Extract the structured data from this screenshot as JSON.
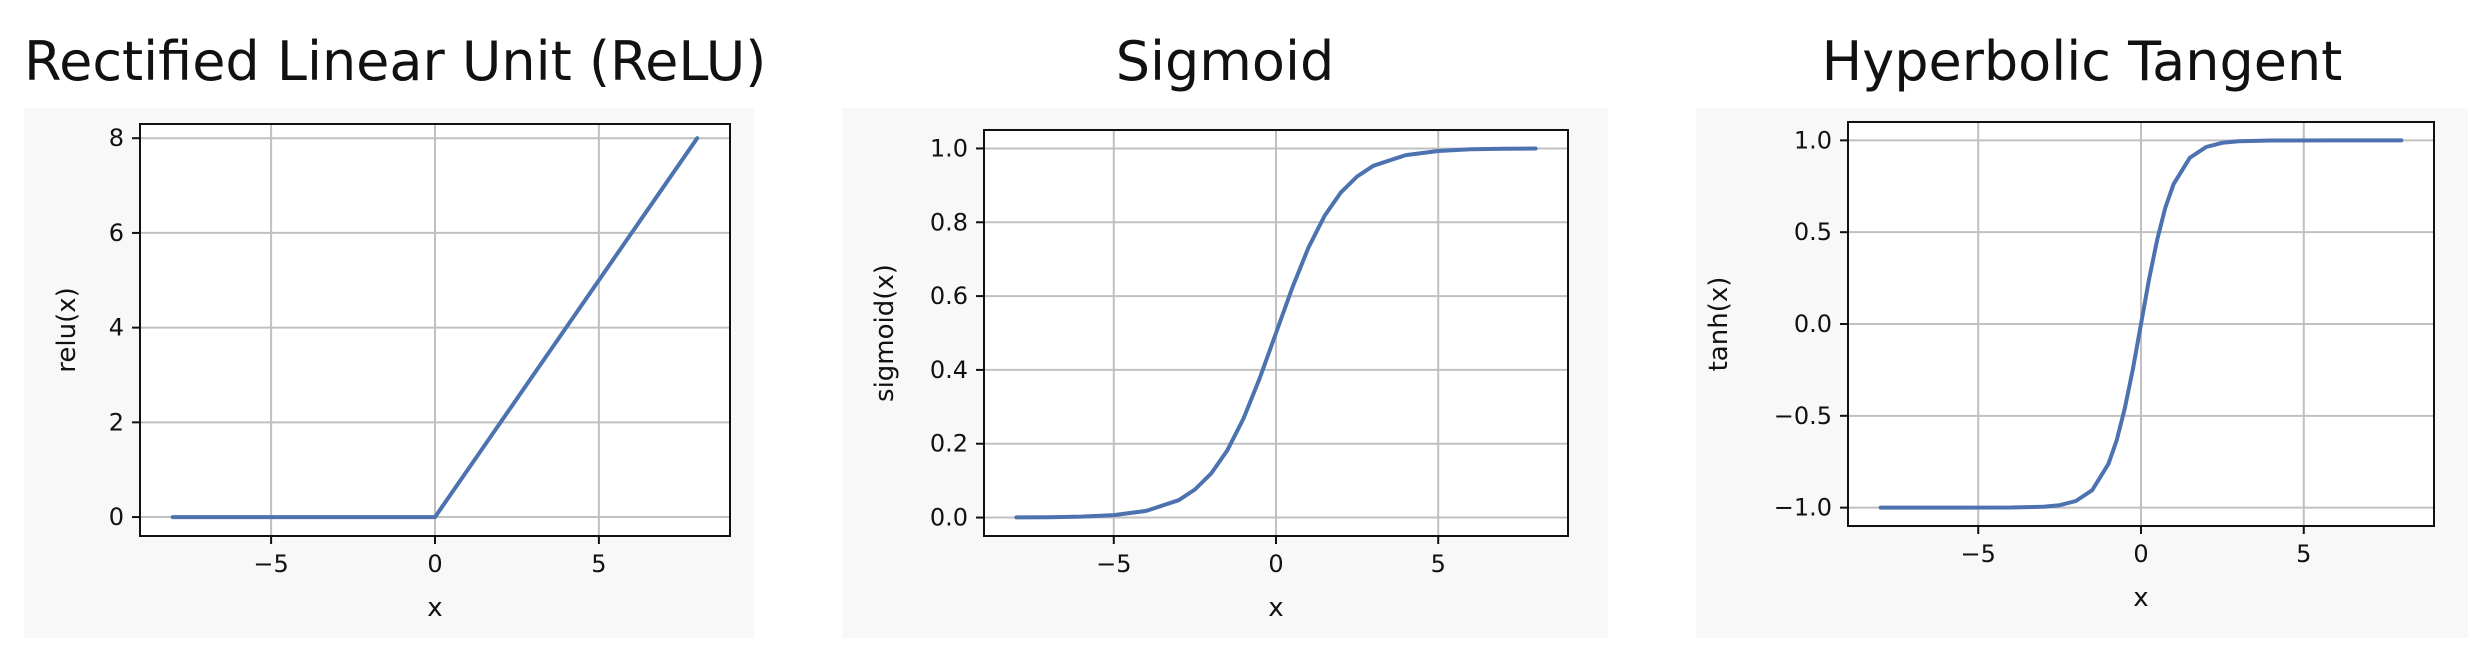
{
  "style": {
    "line_color": "#4c72b0",
    "grid_color": "#c0c0c0",
    "frame_color": "#111111",
    "panel_bg": "#f8f8f8"
  },
  "chart_data": [
    {
      "type": "line",
      "title": "Rectified Linear Unit (ReLU)",
      "xlabel": "x",
      "ylabel": "relu(x)",
      "xlim": [
        -9,
        9
      ],
      "ylim": [
        -0.4,
        8.3
      ],
      "x_ticks": [
        -5,
        0,
        5
      ],
      "x_tick_labels": [
        "−5",
        "0",
        "5"
      ],
      "y_ticks": [
        0,
        2,
        4,
        6,
        8
      ],
      "y_tick_labels": [
        "0",
        "2",
        "4",
        "6",
        "8"
      ],
      "grid": true,
      "series": [
        {
          "x": [
            -8,
            -4,
            0,
            4,
            8
          ],
          "y": [
            0,
            0,
            0,
            4,
            8
          ]
        }
      ]
    },
    {
      "type": "line",
      "title": "Sigmoid",
      "xlabel": "x",
      "ylabel": "sigmoid(x)",
      "xlim": [
        -9,
        9
      ],
      "ylim": [
        -0.05,
        1.05
      ],
      "x_ticks": [
        -5,
        0,
        5
      ],
      "x_tick_labels": [
        "−5",
        "0",
        "5"
      ],
      "y_ticks": [
        0,
        0.2,
        0.4,
        0.6,
        0.8,
        1.0
      ],
      "y_tick_labels": [
        "0.0",
        "0.2",
        "0.4",
        "0.6",
        "0.8",
        "1.0"
      ],
      "grid": true,
      "series": [
        {
          "x": [
            -8,
            -7,
            -6,
            -5,
            -4,
            -3,
            -2.5,
            -2,
            -1.5,
            -1,
            -0.5,
            0,
            0.5,
            1,
            1.5,
            2,
            2.5,
            3,
            4,
            5,
            6,
            7,
            8
          ],
          "y": [
            0.0003,
            0.0009,
            0.0025,
            0.0067,
            0.018,
            0.047,
            0.076,
            0.119,
            0.182,
            0.269,
            0.378,
            0.5,
            0.622,
            0.731,
            0.818,
            0.881,
            0.924,
            0.953,
            0.982,
            0.993,
            0.998,
            0.999,
            1.0
          ]
        }
      ]
    },
    {
      "type": "line",
      "title": "Hyperbolic Tangent",
      "xlabel": "x",
      "ylabel": "tanh(x)",
      "xlim": [
        -9,
        9
      ],
      "ylim": [
        -1.1,
        1.1
      ],
      "x_ticks": [
        -5,
        0,
        5
      ],
      "x_tick_labels": [
        "−5",
        "0",
        "5"
      ],
      "y_ticks": [
        -1.0,
        -0.5,
        0.0,
        0.5,
        1.0
      ],
      "y_tick_labels": [
        "−1.0",
        "−0.5",
        "0.0",
        "0.5",
        "1.0"
      ],
      "grid": true,
      "series": [
        {
          "x": [
            -8,
            -6,
            -4,
            -3,
            -2.5,
            -2,
            -1.5,
            -1,
            -0.75,
            -0.5,
            -0.25,
            0,
            0.25,
            0.5,
            0.75,
            1,
            1.5,
            2,
            2.5,
            3,
            4,
            6,
            8
          ],
          "y": [
            -1.0,
            -1.0,
            -0.999,
            -0.995,
            -0.987,
            -0.964,
            -0.905,
            -0.762,
            -0.635,
            -0.462,
            -0.245,
            0,
            0.245,
            0.462,
            0.635,
            0.762,
            0.905,
            0.964,
            0.987,
            0.995,
            0.999,
            1.0,
            1.0
          ]
        }
      ]
    }
  ]
}
